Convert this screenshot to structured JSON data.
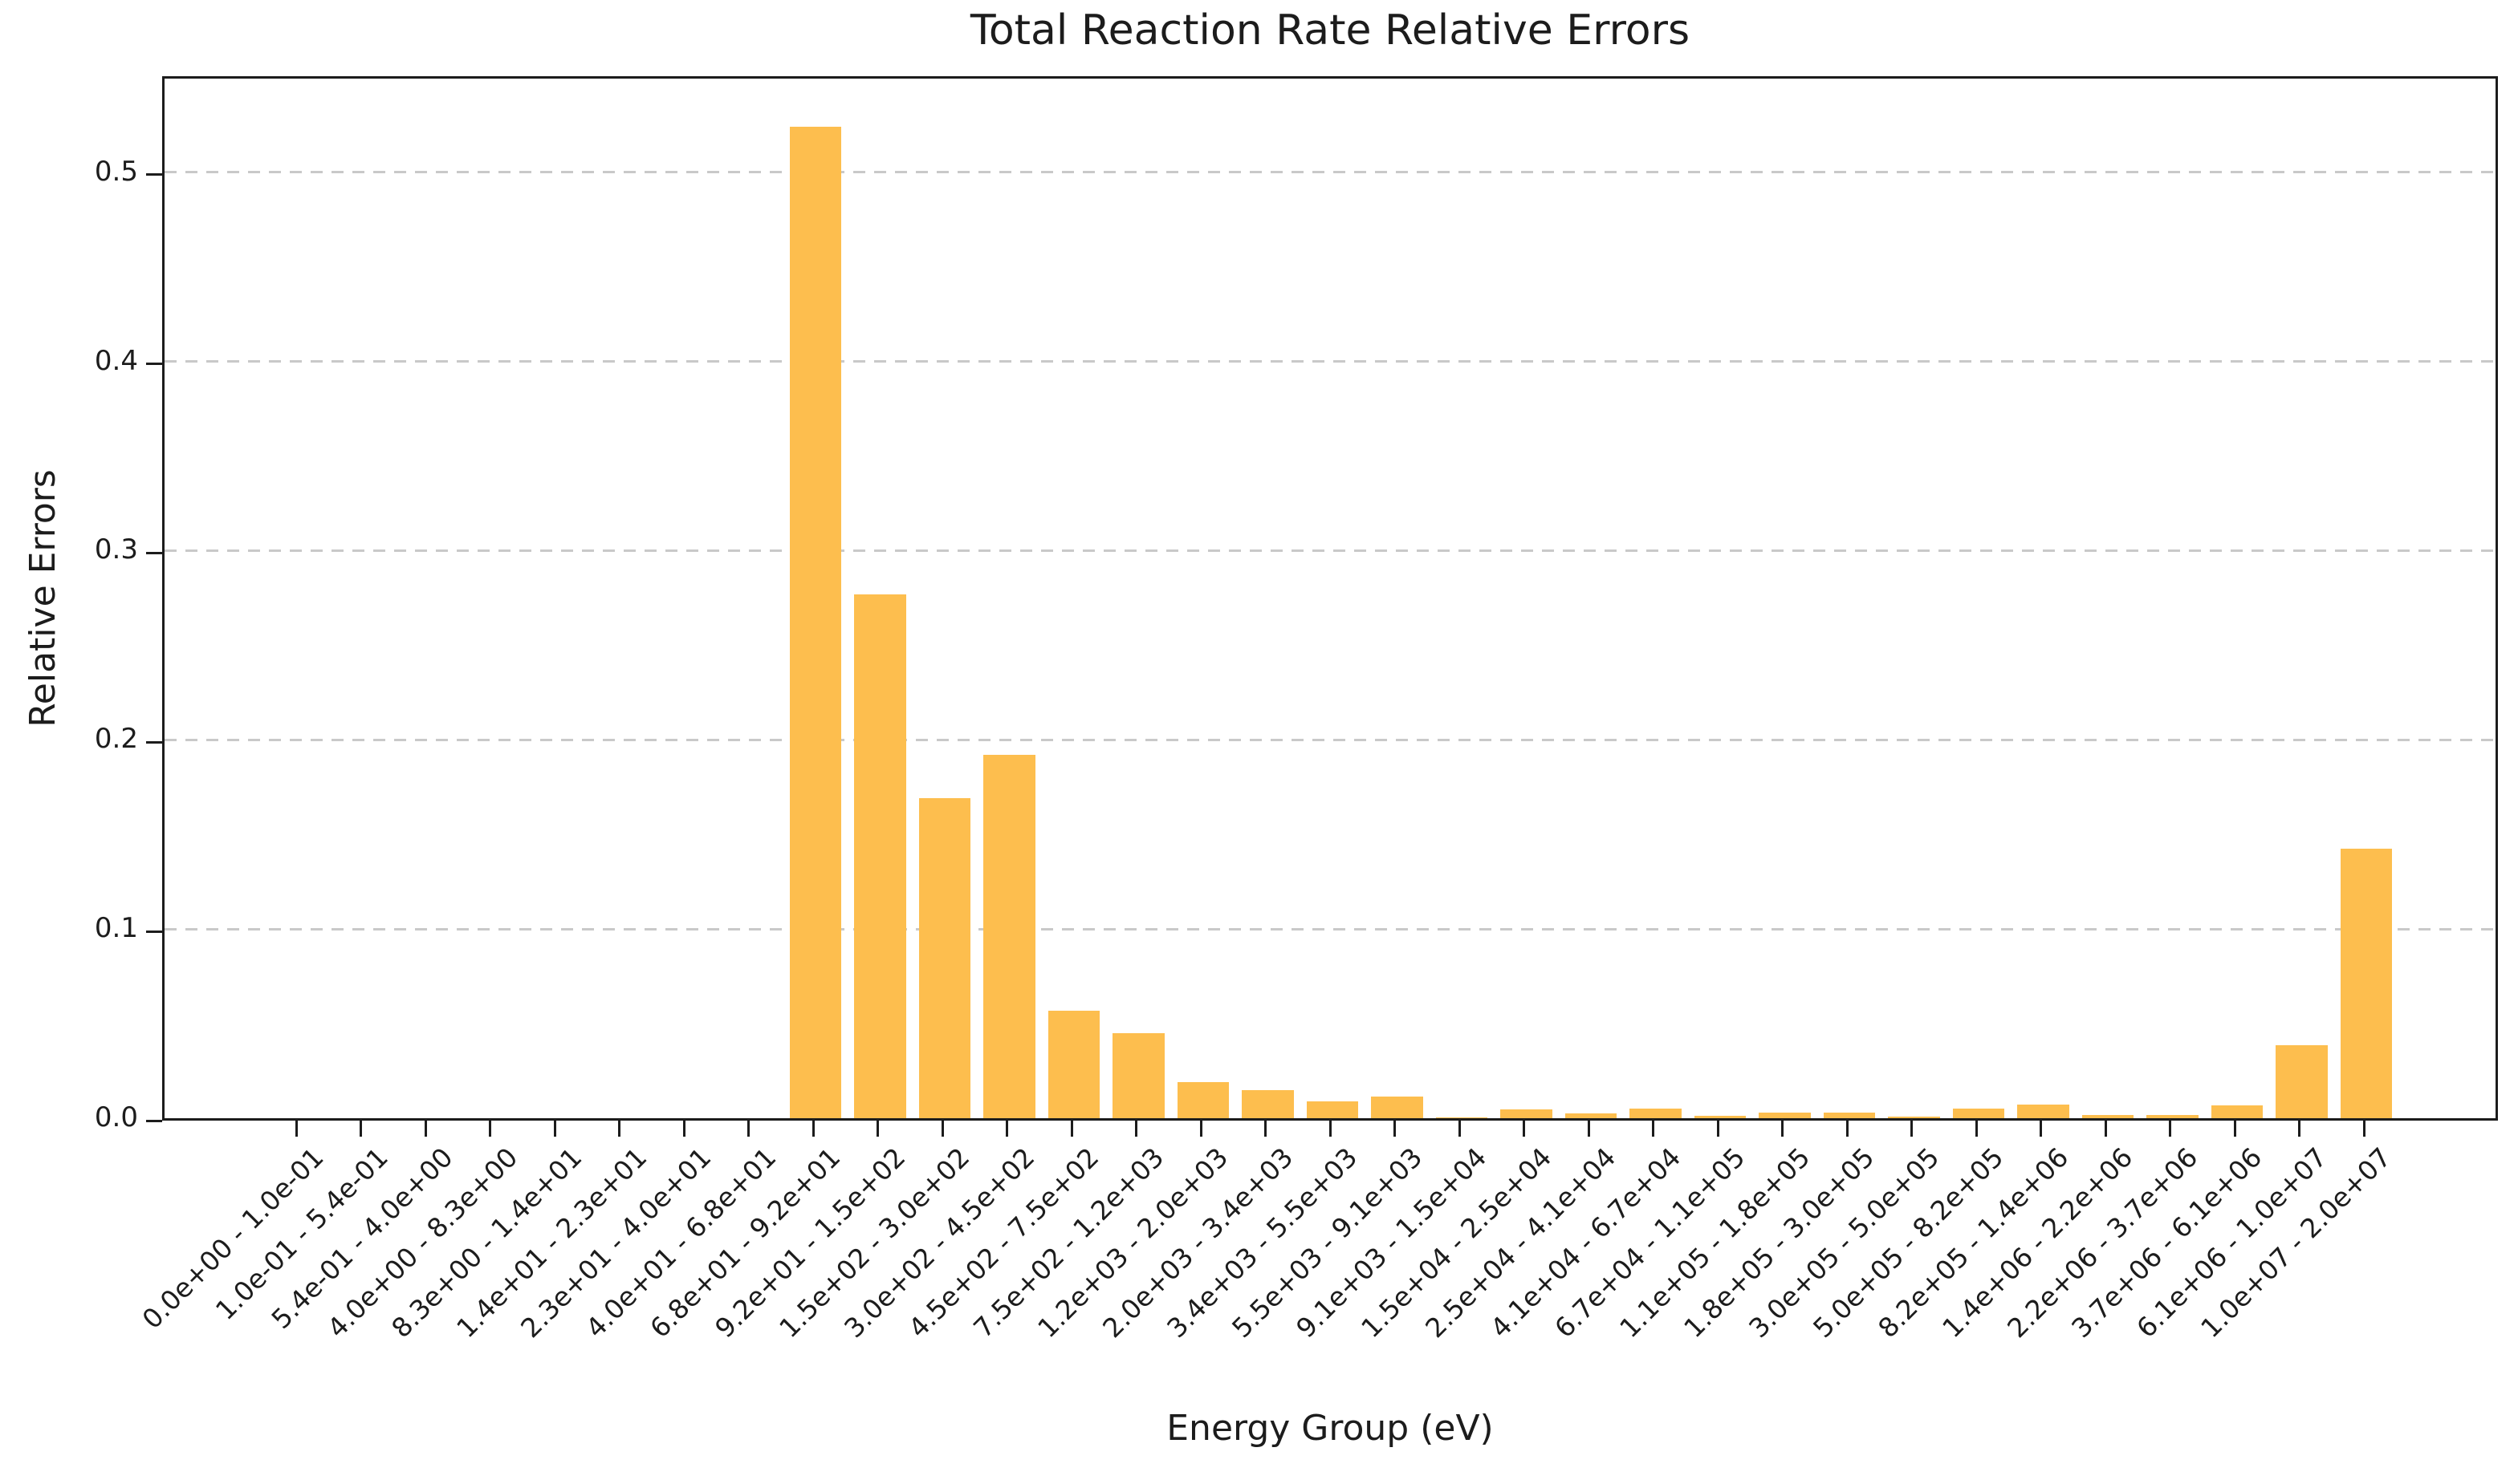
{
  "figure": {
    "background": "#ffffff",
    "text_color": "#1c1c1c"
  },
  "chart_data": {
    "type": "bar",
    "title": "Total Reaction Rate Relative Errors",
    "xlabel": "Energy Group (eV)",
    "ylabel": "Relative Errors",
    "bar_color": "#fdbe4e",
    "grid": {
      "axis": "y",
      "style": "dashed",
      "color": "#c9c9c9"
    },
    "legend": "none",
    "ylim": [
      0,
      0.552
    ],
    "yticks": [
      "0.0",
      "0.1",
      "0.2",
      "0.3",
      "0.4",
      "0.5"
    ],
    "categories": [
      "0.0e+00 - 1.0e-01",
      "1.0e-01 - 5.4e-01",
      "5.4e-01 - 4.0e+00",
      "4.0e+00 - 8.3e+00",
      "8.3e+00 - 1.4e+01",
      "1.4e+01 - 2.3e+01",
      "2.3e+01 - 4.0e+01",
      "4.0e+01 - 6.8e+01",
      "6.8e+01 - 9.2e+01",
      "9.2e+01 - 1.5e+02",
      "1.5e+02 - 3.0e+02",
      "3.0e+02 - 4.5e+02",
      "4.5e+02 - 7.5e+02",
      "7.5e+02 - 1.2e+03",
      "1.2e+03 - 2.0e+03",
      "2.0e+03 - 3.4e+03",
      "3.4e+03 - 5.5e+03",
      "5.5e+03 - 9.1e+03",
      "9.1e+03 - 1.5e+04",
      "1.5e+04 - 2.5e+04",
      "2.5e+04 - 4.1e+04",
      "4.1e+04 - 6.7e+04",
      "6.7e+04 - 1.1e+05",
      "1.1e+05 - 1.8e+05",
      "1.8e+05 - 3.0e+05",
      "3.0e+05 - 5.0e+05",
      "5.0e+05 - 8.2e+05",
      "8.2e+05 - 1.4e+06",
      "1.4e+06 - 2.2e+06",
      "2.2e+06 - 3.7e+06",
      "3.7e+06 - 6.1e+06",
      "6.1e+06 - 1.0e+07",
      "1.0e+07 - 2.0e+07"
    ],
    "values": [
      0,
      0,
      0,
      0,
      0,
      0,
      0,
      0,
      0.524,
      0.277,
      0.169,
      0.192,
      0.057,
      0.045,
      0.019,
      0.015,
      0.0087,
      0.0116,
      0.0005,
      0.0045,
      0.0026,
      0.0053,
      0.0011,
      0.0029,
      0.003,
      0.001,
      0.0053,
      0.0074,
      0.0018,
      0.0018,
      0.007,
      0.0385,
      0.1425
    ]
  }
}
